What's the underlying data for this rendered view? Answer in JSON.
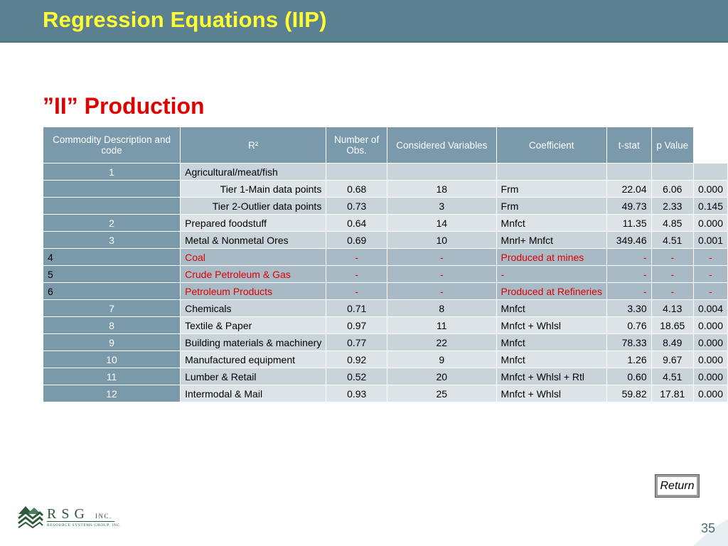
{
  "slide": {
    "title": "Regression Equations (IIP)",
    "subtitle": "”II” Production",
    "page_number": "35"
  },
  "table": {
    "headers": [
      "Commodity Description and code",
      "R²",
      "Number of Obs.",
      "Considered Variables",
      "Coefficient",
      "t-stat",
      "p Value"
    ],
    "rows": [
      {
        "code": "1",
        "desc": "Agricultural/meat/fish",
        "r2": "",
        "obs": "",
        "vars": "",
        "coef": "",
        "tstat": "",
        "p": ""
      },
      {
        "code": "",
        "desc": "Tier 1-Main data points",
        "r2": "0.68",
        "obs": "18",
        "vars": "Frm",
        "coef": "22.04",
        "tstat": "6.06",
        "p": "0.000"
      },
      {
        "code": "",
        "desc": "Tier 2-Outlier data points",
        "r2": "0.73",
        "obs": "3",
        "vars": "Frm",
        "coef": "49.73",
        "tstat": "2.33",
        "p": "0.145"
      },
      {
        "code": "2",
        "desc": "Prepared foodstuff",
        "r2": "0.64",
        "obs": "14",
        "vars": "Mnfct",
        "coef": "11.35",
        "tstat": "4.85",
        "p": "0.000"
      },
      {
        "code": "3",
        "desc": "Metal & Nonmetal Ores",
        "r2": "0.69",
        "obs": "10",
        "vars": "Mnrl+ Mnfct",
        "coef": "349.46",
        "tstat": "4.51",
        "p": "0.001"
      },
      {
        "code": "4",
        "desc": "Coal",
        "r2": "-",
        "obs": "-",
        "vars": "Produced at mines",
        "coef": "-",
        "tstat": "-",
        "p": "-"
      },
      {
        "code": "5",
        "desc": "Crude Petroleum & Gas",
        "r2": "-",
        "obs": "-",
        "vars": "-",
        "coef": "-",
        "tstat": "-",
        "p": "-"
      },
      {
        "code": "6",
        "desc": "Petroleum Products",
        "r2": "-",
        "obs": "-",
        "vars": "Produced at Refineries",
        "coef": "-",
        "tstat": "-",
        "p": "-"
      },
      {
        "code": "7",
        "desc": "Chemicals",
        "r2": "0.71",
        "obs": "8",
        "vars": "Mnfct",
        "coef": "3.30",
        "tstat": "4.13",
        "p": "0.004"
      },
      {
        "code": "8",
        "desc": "Textile & Paper",
        "r2": "0.97",
        "obs": "11",
        "vars": "Mnfct + Whlsl",
        "coef": "0.76",
        "tstat": "18.65",
        "p": "0.000"
      },
      {
        "code": "9",
        "desc": "Building materials & machinery",
        "r2": "0.77",
        "obs": "22",
        "vars": "Mnfct",
        "coef": "78.33",
        "tstat": "8.49",
        "p": "0.000"
      },
      {
        "code": "10",
        "desc": "Manufactured equipment",
        "r2": "0.92",
        "obs": "9",
        "vars": "Mnfct",
        "coef": "1.26",
        "tstat": "9.67",
        "p": "0.000"
      },
      {
        "code": "11",
        "desc": "Lumber & Retail",
        "r2": "0.52",
        "obs": "20",
        "vars": "Mnfct + Whlsl + Rtl",
        "coef": "0.60",
        "tstat": "4.51",
        "p": "0.000"
      },
      {
        "code": "12",
        "desc": "Intermodal & Mail",
        "r2": "0.93",
        "obs": "25",
        "vars": "Mnfct + Whlsl",
        "coef": "59.82",
        "tstat": "17.81",
        "p": "0.000"
      }
    ]
  },
  "return_button": {
    "label": "Return"
  },
  "logo": {
    "letters": "R S G",
    "inc": "INC.",
    "tagline": "RESOURCE SYSTEMS GROUP, INC.",
    "icon": "mountain-logo-icon"
  },
  "colors": {
    "title_bar": "#5a8091",
    "title_text": "#ffff33",
    "subtitle": "#e00000",
    "header_bg": "#7a99ab",
    "highlight_text": "#e00000"
  }
}
